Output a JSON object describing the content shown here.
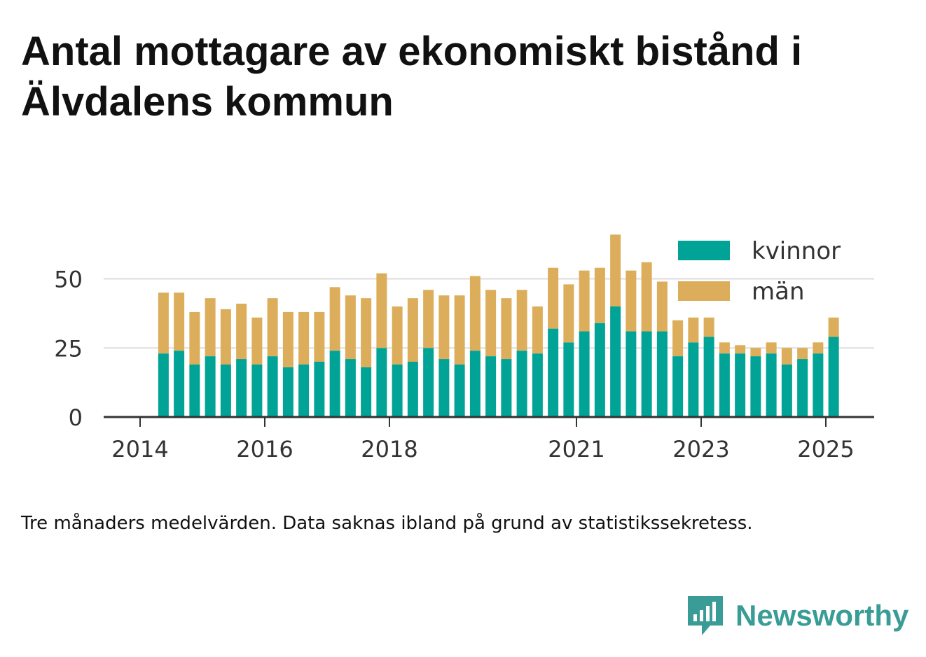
{
  "title": "Antal mottagare av ekonomiskt bistånd i Älvdalens kommun",
  "caption": "Tre månaders medelvärden. Data saknas ibland på grund av statistikssekretess.",
  "brand": {
    "name": "Newsworthy",
    "icon": "newsworthy-logo-icon",
    "color": "#3a9c96"
  },
  "colors": {
    "kvinnor": "#00a395",
    "man": "#dcae5b",
    "grid": "#dddddd",
    "axis": "#333333"
  },
  "chart_data": {
    "type": "bar",
    "stacked": true,
    "title": "Antal mottagare av ekonomiskt bistånd i Älvdalens kommun",
    "xlabel": "",
    "ylabel": "",
    "ylim": [
      0,
      65
    ],
    "y_ticks": [
      0,
      25,
      50
    ],
    "x_ticks": [
      "2014",
      "2016",
      "2018",
      "2021",
      "2023",
      "2025"
    ],
    "grid": true,
    "legend_position": "top-right",
    "categories": [
      "2014-Q2",
      "2014-Q3",
      "2014-Q4",
      "2015-Q1",
      "2015-Q2",
      "2015-Q3",
      "2015-Q4",
      "2016-Q1",
      "2016-Q2",
      "2016-Q3",
      "2016-Q4",
      "2017-Q1",
      "2017-Q2",
      "2017-Q3",
      "2017-Q4",
      "2018-Q1",
      "2018-Q2",
      "2018-Q3",
      "2018-Q4",
      "2019-Q1",
      "2019-Q2",
      "2019-Q3",
      "2019-Q4",
      "2020-Q1",
      "2020-Q2",
      "2020-Q3",
      "2020-Q4",
      "2021-Q1",
      "2021-Q2",
      "2021-Q3",
      "2021-Q4",
      "2022-Q1",
      "2022-Q2",
      "2022-Q3",
      "2022-Q4",
      "2023-Q1",
      "2023-Q2",
      "2023-Q3",
      "2023-Q4",
      "2024-Q1",
      "2024-Q2",
      "2024-Q3",
      "2024-Q4",
      "2025-Q1"
    ],
    "series": [
      {
        "name": "kvinnor",
        "values": [
          23,
          24,
          19,
          22,
          19,
          21,
          19,
          22,
          18,
          19,
          20,
          24,
          21,
          18,
          25,
          19,
          20,
          25,
          21,
          19,
          24,
          22,
          21,
          24,
          23,
          32,
          27,
          31,
          34,
          40,
          31,
          31,
          31,
          22,
          27,
          29,
          23,
          23,
          22,
          23,
          19,
          21,
          23,
          29
        ]
      },
      {
        "name": "män",
        "values": [
          22,
          21,
          19,
          21,
          20,
          20,
          17,
          21,
          20,
          19,
          18,
          23,
          23,
          25,
          27,
          21,
          23,
          21,
          23,
          25,
          27,
          24,
          22,
          22,
          17,
          22,
          21,
          22,
          20,
          26,
          22,
          25,
          18,
          13,
          9,
          7,
          4,
          3,
          3,
          4,
          6,
          4,
          4,
          7
        ]
      }
    ]
  }
}
